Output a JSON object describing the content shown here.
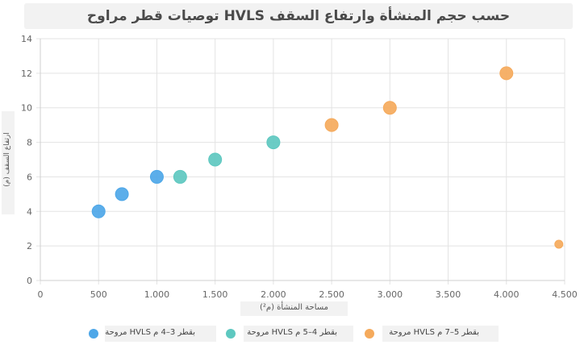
{
  "chart_data": {
    "type": "scatter",
    "title": "حسب حجم المنشأة وارتفاع السقف HVLS توصيات قطر مراوح",
    "xlabel": "مساحة المنشأة (م²)",
    "ylabel": "ارتفاع السقف (م)",
    "xlim": [
      0,
      4500
    ],
    "ylim": [
      0,
      14
    ],
    "x_ticks": [
      "0",
      "500",
      "1.000",
      "1.500",
      "2.000",
      "2.500",
      "3.000",
      "3.500",
      "4.000",
      "4.500"
    ],
    "y_ticks": [
      "0",
      "2",
      "4",
      "6",
      "8",
      "10",
      "12",
      "14"
    ],
    "grid": true,
    "legend_position": "bottom",
    "series": [
      {
        "name": "بقطر 3–4 م HVLS مروحة",
        "color": "#4ea7e8",
        "points": [
          [
            500,
            4
          ],
          [
            700,
            5
          ],
          [
            1000,
            6
          ]
        ]
      },
      {
        "name": "بقطر 4–5 م HVLS مروحة",
        "color": "#5ec8c0",
        "points": [
          [
            1200,
            6
          ],
          [
            1500,
            7
          ],
          [
            2000,
            8
          ]
        ]
      },
      {
        "name": "بقطر 5–7 م HVLS مروحة",
        "color": "#f5aa5c",
        "points": [
          [
            2500,
            9
          ],
          [
            3000,
            10
          ],
          [
            4000,
            12
          ],
          [
            4450,
            2.1
          ]
        ]
      }
    ]
  }
}
